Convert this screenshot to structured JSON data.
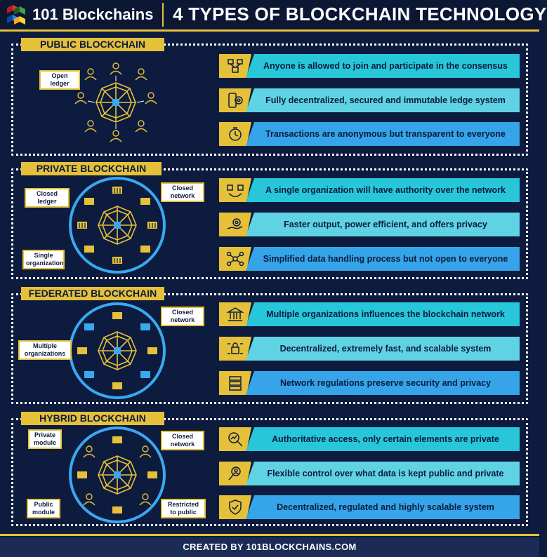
{
  "header": {
    "logo_text": "101 Blockchains",
    "title": "4 TYPES OF BLOCKCHAIN TECHNOLOGY"
  },
  "sections": [
    {
      "label": "PUBLIC BLOCKCHAIN",
      "callouts": [
        "Open ledger"
      ],
      "features": [
        {
          "icon": "users-network-icon",
          "text": "Anyone is allowed to join and participate in the consensus"
        },
        {
          "icon": "phone-gear-icon",
          "text": "Fully decentralized, secured and immutable ledge system"
        },
        {
          "icon": "stopwatch-icon",
          "text": "Transactions are anonymous but transparent to everyone"
        }
      ]
    },
    {
      "label": "PRIVATE BLOCKCHAIN",
      "callouts": [
        "Closed ledger",
        "Closed network",
        "Single organization"
      ],
      "features": [
        {
          "icon": "handshake-cubes-icon",
          "text": "A single organization will have authority over the network"
        },
        {
          "icon": "hand-gear-icon",
          "text": "Faster output, power efficient, and offers privacy"
        },
        {
          "icon": "network-nodes-icon",
          "text": "Simplified data handling process but not open to everyone"
        }
      ]
    },
    {
      "label": "FEDERATED BLOCKCHAIN",
      "callouts": [
        "Closed network",
        "Multiple organizations"
      ],
      "features": [
        {
          "icon": "building-icon",
          "text": "Multiple organizations influences the blockchain network"
        },
        {
          "icon": "lock-circuit-icon",
          "text": "Decentralized, extremely fast, and scalable system"
        },
        {
          "icon": "server-icon",
          "text": "Network regulations preserve security and privacy"
        }
      ]
    },
    {
      "label": "HYBRID BLOCKCHAIN",
      "callouts": [
        "Private module",
        "Closed network",
        "Public module",
        "Restricted to public"
      ],
      "features": [
        {
          "icon": "magnifier-chart-icon",
          "text": "Authoritative access, only certain elements are private"
        },
        {
          "icon": "search-person-icon",
          "text": "Flexible control over what data is kept public and private"
        },
        {
          "icon": "shield-check-icon",
          "text": "Decentralized, regulated and highly scalable system"
        }
      ]
    }
  ],
  "footer": {
    "text": "CREATED BY 101BLOCKCHAINS.COM"
  },
  "colors": {
    "background": "#0d1b3e",
    "gold": "#e5c13a",
    "cyan": "#27c6d9",
    "light_cyan": "#5fd3e3",
    "blue": "#35a4e8",
    "ring": "#3aa8f0"
  }
}
